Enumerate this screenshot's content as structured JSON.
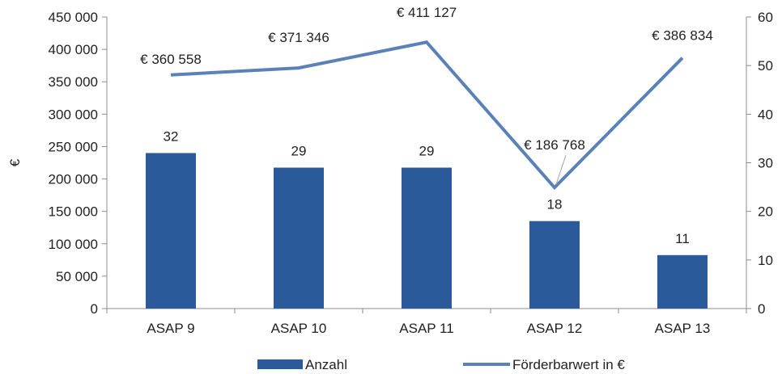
{
  "chart_data": {
    "type": "bar",
    "categories": [
      "ASAP 9",
      "ASAP 10",
      "ASAP 11",
      "ASAP 12",
      "ASAP 13"
    ],
    "series": [
      {
        "name": "Anzahl",
        "type": "bar",
        "axis": "right",
        "values": [
          32,
          29,
          29,
          18,
          11
        ],
        "labels": [
          "32",
          "29",
          "29",
          "18",
          "11"
        ],
        "color": "#2a5a9a"
      },
      {
        "name": "Förderbarwert in €",
        "type": "line",
        "axis": "left",
        "values": [
          360558,
          371346,
          411127,
          186768,
          386834
        ],
        "labels": [
          "€ 360 558",
          "€ 371 346",
          "€ 411 127",
          "€ 186 768",
          "€ 386 834"
        ],
        "color": "#5a82b8"
      }
    ],
    "ylabel": "€",
    "ylim": [
      0,
      450000
    ],
    "y_ticks": [
      "0",
      "50 000",
      "100 000",
      "150 000",
      "200 000",
      "250 000",
      "300 000",
      "350 000",
      "400 000",
      "450 000"
    ],
    "y2lim": [
      0,
      60
    ],
    "y2_ticks": [
      "0",
      "10",
      "20",
      "30",
      "40",
      "50",
      "60"
    ],
    "grid": false,
    "legend": "bottom"
  }
}
